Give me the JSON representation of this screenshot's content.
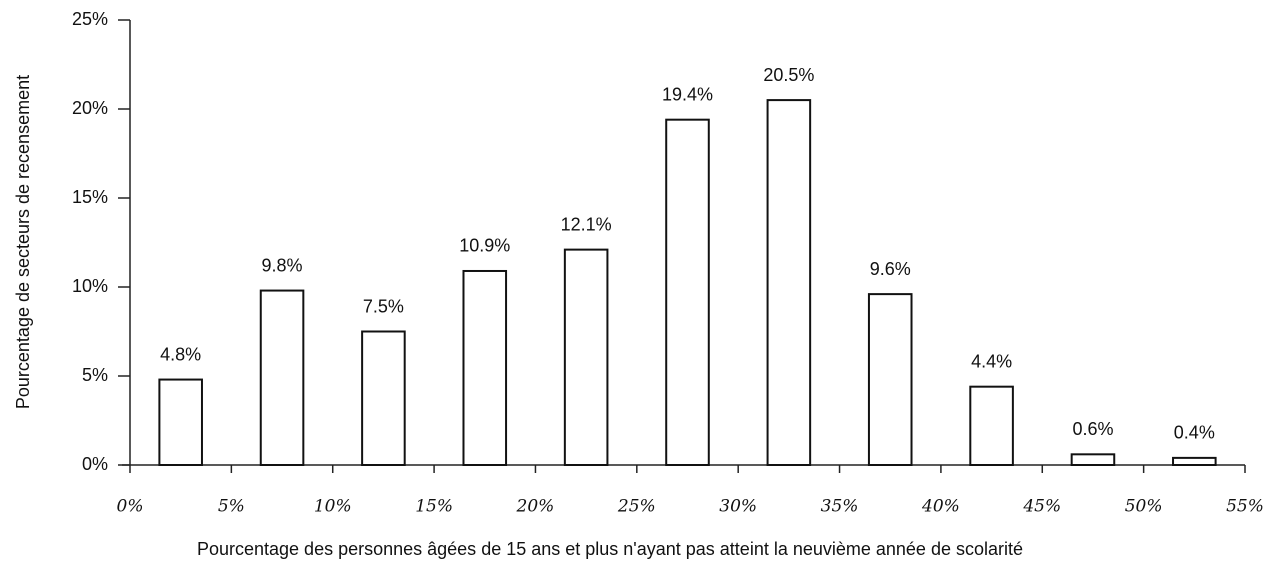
{
  "chart_data": {
    "type": "histogram",
    "x_label": "Pourcentage des personnes âgées de 15 ans et plus n'ayant pas atteint la neuvième année de scolarité",
    "y_label": "Pourcentage de secteurs de recensement",
    "bins": [
      0,
      5,
      10,
      15,
      20,
      25,
      30,
      35,
      40,
      45,
      50,
      55
    ],
    "values": [
      4.8,
      9.8,
      7.5,
      10.9,
      12.1,
      19.4,
      20.5,
      9.6,
      4.4,
      0.6,
      0.4
    ],
    "value_labels": [
      "4.8%",
      "9.8%",
      "7.5%",
      "10.9%",
      "12.1%",
      "19.4%",
      "20.5%",
      "9.6%",
      "4.4%",
      "0.6%",
      "0.4%"
    ],
    "color": "#ffffff",
    "xlim": [
      0,
      55
    ],
    "xticks": [
      {
        "value": 0,
        "label": "0%"
      },
      {
        "value": 5,
        "label": "5%"
      },
      {
        "value": 10,
        "label": "10%"
      },
      {
        "value": 15,
        "label": "15%"
      },
      {
        "value": 20,
        "label": "20%"
      },
      {
        "value": 25,
        "label": "25%"
      },
      {
        "value": 30,
        "label": "30%"
      },
      {
        "value": 35,
        "label": "35%"
      },
      {
        "value": 40,
        "label": "40%"
      },
      {
        "value": 45,
        "label": "45%"
      },
      {
        "value": 50,
        "label": "50%"
      },
      {
        "value": 55,
        "label": "55%"
      }
    ],
    "ylim": [
      0,
      25
    ],
    "yticks": [
      {
        "value": 0,
        "label": "0%"
      },
      {
        "value": 5,
        "label": "5%"
      },
      {
        "value": 10,
        "label": "10%"
      },
      {
        "value": 15,
        "label": "15%"
      },
      {
        "value": 20,
        "label": "20%"
      },
      {
        "value": 25,
        "label": "25%"
      }
    ],
    "grid": false
  }
}
